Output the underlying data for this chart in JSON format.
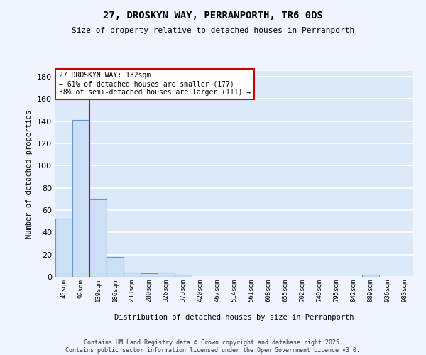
{
  "title1": "27, DROSKYN WAY, PERRANPORTH, TR6 0DS",
  "title2": "Size of property relative to detached houses in Perranporth",
  "xlabel": "Distribution of detached houses by size in Perranporth",
  "ylabel": "Number of detached properties",
  "categories": [
    "45sqm",
    "92sqm",
    "139sqm",
    "186sqm",
    "233sqm",
    "280sqm",
    "326sqm",
    "373sqm",
    "420sqm",
    "467sqm",
    "514sqm",
    "561sqm",
    "608sqm",
    "655sqm",
    "702sqm",
    "749sqm",
    "795sqm",
    "842sqm",
    "889sqm",
    "936sqm",
    "983sqm"
  ],
  "values": [
    52,
    141,
    70,
    18,
    4,
    3,
    4,
    2,
    0,
    0,
    0,
    0,
    0,
    0,
    0,
    0,
    0,
    0,
    2,
    0,
    0
  ],
  "bar_color": "#cce0f5",
  "bar_edge_color": "#5b9bd5",
  "background_color": "#dce9f8",
  "grid_color": "#ffffff",
  "vline_color": "#cc0000",
  "annotation_line1": "27 DROSKYN WAY: 132sqm",
  "annotation_line2": "← 61% of detached houses are smaller (177)",
  "annotation_line3": "38% of semi-detached houses are larger (111) →",
  "annotation_box_color": "#ffffff",
  "annotation_box_edge": "#cc0000",
  "ylim": [
    0,
    185
  ],
  "yticks": [
    0,
    20,
    40,
    60,
    80,
    100,
    120,
    140,
    160,
    180
  ],
  "footer1": "Contains HM Land Registry data © Crown copyright and database right 2025.",
  "footer2": "Contains public sector information licensed under the Open Government Licence v3.0."
}
